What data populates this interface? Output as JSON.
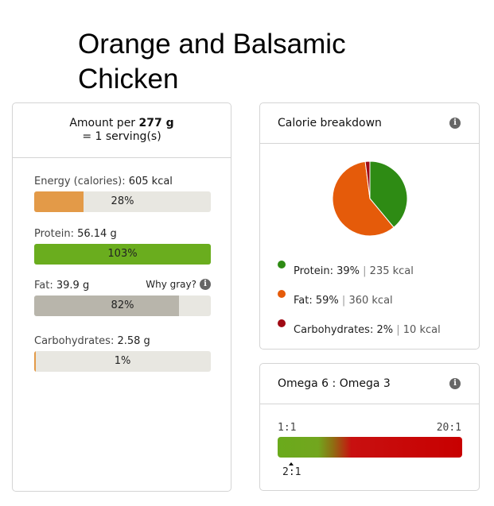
{
  "title": "Orange and Balsamic Chicken",
  "amount": {
    "prefix": "Amount per",
    "weight": "277 g",
    "serving": "= 1 serving(s)"
  },
  "nutrients": [
    {
      "label": "Energy (calories):",
      "value": "605 kcal",
      "percent": 28,
      "percent_label": "28%",
      "color": "#e39a48"
    },
    {
      "label": "Protein:",
      "value": "56.14 g",
      "percent": 103,
      "percent_label": "103%",
      "color": "#6aad1e"
    },
    {
      "label": "Fat:",
      "value": "39.9 g",
      "percent": 82,
      "percent_label": "82%",
      "color": "#b8b5ab",
      "note": "Why gray?"
    },
    {
      "label": "Carbohydrates:",
      "value": "2.58 g",
      "percent": 1,
      "percent_label": "1%",
      "color": "#e39a48"
    }
  ],
  "calorie_breakdown": {
    "title": "Calorie breakdown",
    "items": [
      {
        "name": "Protein:",
        "pct": "39%",
        "kcal": "235 kcal",
        "color": "#2e8b14"
      },
      {
        "name": "Fat:",
        "pct": "59%",
        "kcal": "360 kcal",
        "color": "#e55b0a"
      },
      {
        "name": "Carbohydrates:",
        "pct": "2%",
        "kcal": "10 kcal",
        "color": "#a00a14"
      }
    ]
  },
  "chart_data": {
    "type": "pie",
    "categories": [
      "Protein",
      "Fat",
      "Carbohydrates"
    ],
    "values": [
      39,
      59,
      2
    ],
    "colors": [
      "#2e8b14",
      "#e55b0a",
      "#a00a14"
    ]
  },
  "omega": {
    "title": "Omega 6 : Omega 3",
    "min_label": "1:1",
    "max_label": "20:1",
    "value_label": "2:1"
  },
  "icons": {
    "info": "info-icon"
  },
  "info_glyph": "i",
  "separator": "|"
}
